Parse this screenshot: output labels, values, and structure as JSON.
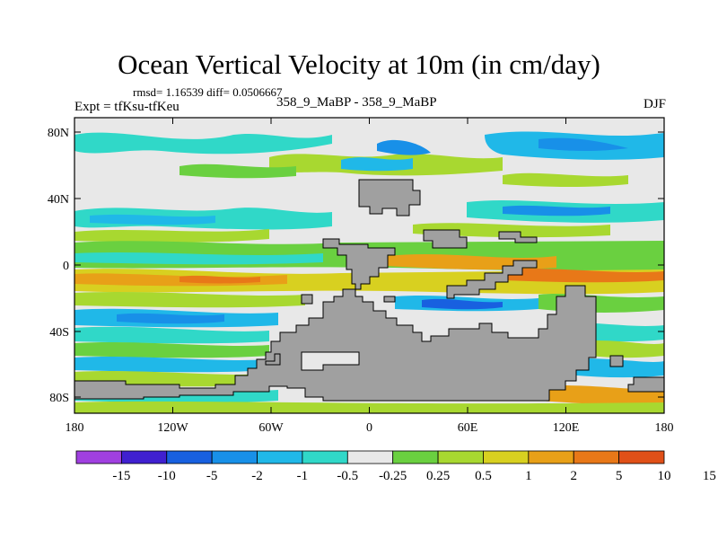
{
  "title": "Ocean Vertical Velocity at 10m (in cm/day)",
  "stats": "rmsd= 1.16539 diff= 0.0506667",
  "expt": "Expt = tfKsu-tfKeu",
  "case": "358_9_MaBP - 358_9_MaBP",
  "season": "DJF",
  "map": {
    "lat_labels": [
      "80N",
      "40N",
      "0",
      "40S",
      "80S"
    ],
    "lon_labels": [
      "180",
      "120W",
      "60W",
      "0",
      "60E",
      "120E",
      "180"
    ],
    "land_color": "#a0a0a0"
  },
  "colorbar": {
    "colors": [
      "#a040e0",
      "#4020d0",
      "#1860e0",
      "#1890e8",
      "#20b8e8",
      "#30d8c8",
      "#e8e8e8",
      "#6ad040",
      "#a8d830",
      "#d8d020",
      "#e8a018",
      "#e87818",
      "#e05018"
    ],
    "labels": [
      "-15",
      "-10",
      "-5",
      "-2",
      "-1",
      "-0.5",
      "-0.25",
      "0.25",
      "0.5",
      "1",
      "2",
      "5",
      "10",
      "15"
    ]
  }
}
